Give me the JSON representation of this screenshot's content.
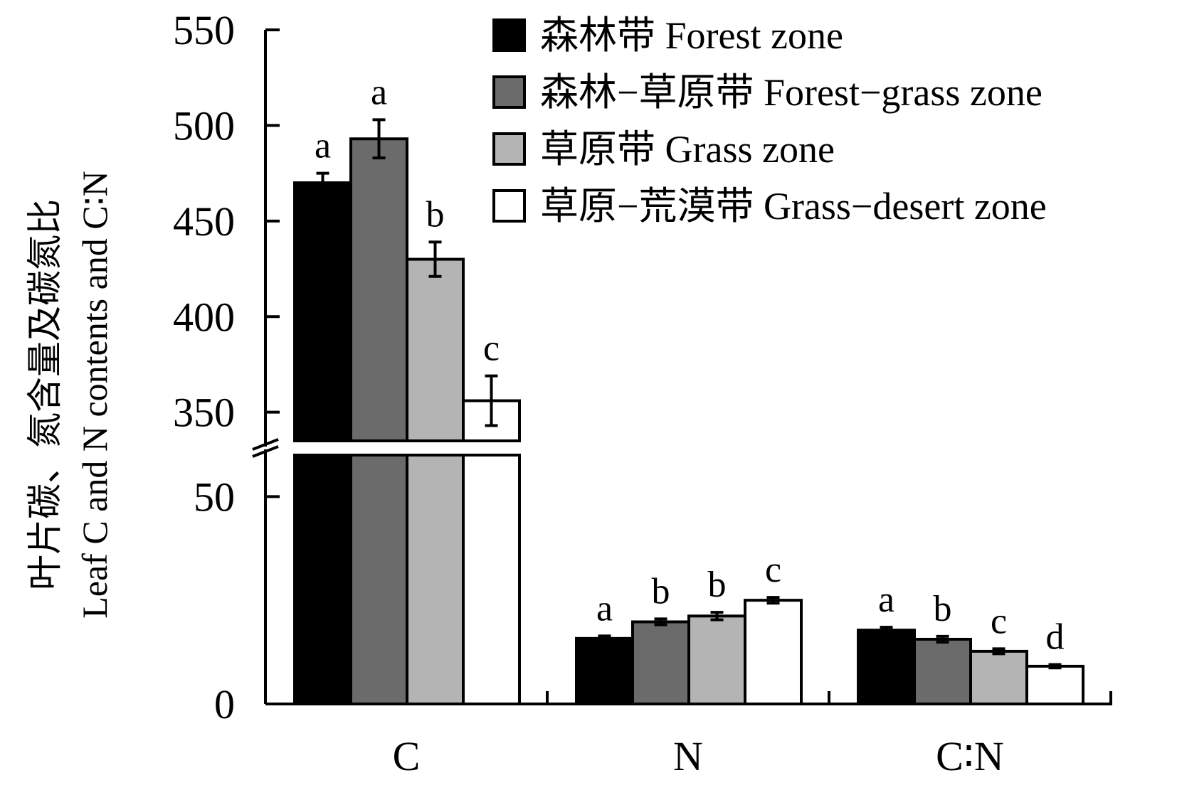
{
  "chart_data": {
    "type": "bar",
    "ylabel_zh": "叶片碳、氮含量及碳氮比",
    "ylabel_en": "Leaf C and N contents and C∶N",
    "categories": [
      "C",
      "N",
      "C∶N"
    ],
    "axis_break": true,
    "upper_segment": {
      "ylim": [
        335,
        550
      ],
      "ticks": [
        350,
        400,
        450,
        500,
        550
      ]
    },
    "lower_segment": {
      "ylim": [
        0,
        60
      ],
      "ticks": [
        0,
        50
      ]
    },
    "legend_position": "top-right",
    "series": [
      {
        "name": "森林带 Forest zone",
        "color": "#000000",
        "values": [
          470,
          15.8,
          17.8
        ],
        "errors": [
          5,
          0.6,
          0.7
        ],
        "sig": [
          "a",
          "a",
          "a"
        ]
      },
      {
        "name": "森林−草原带 Forest−grass zone",
        "color": "#6b6b6b",
        "values": [
          493,
          19.8,
          15.6
        ],
        "errors": [
          10,
          0.7,
          0.7
        ],
        "sig": [
          "a",
          "b",
          "b"
        ]
      },
      {
        "name": "草原带 Grass zone",
        "color": "#b4b4b4",
        "values": [
          430,
          21.2,
          12.7
        ],
        "errors": [
          9,
          0.9,
          0.6
        ],
        "sig": [
          "b",
          "b",
          "c"
        ]
      },
      {
        "name": "草原−荒漠带 Grass−desert zone",
        "color": "#ffffff",
        "values": [
          356,
          25.0,
          9.1
        ],
        "errors": [
          13,
          0.7,
          0.4
        ],
        "sig": [
          "c",
          "c",
          "d"
        ]
      }
    ]
  }
}
